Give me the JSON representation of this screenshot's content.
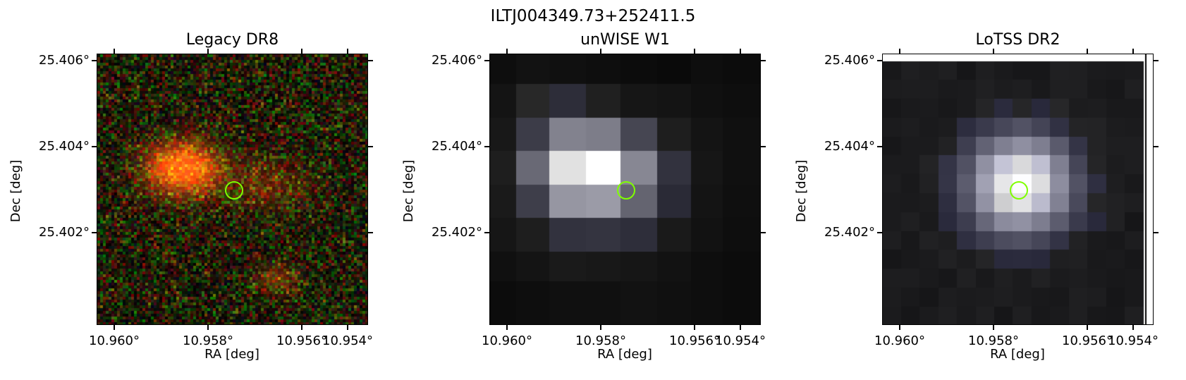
{
  "figure": {
    "title": "ILTJ004349.73+252411.5",
    "marker_color": "#7fff00"
  },
  "panels": [
    {
      "id": "legacy",
      "title": "Legacy DR8",
      "xlabel": "RA [deg]",
      "ylabel": "Dec [deg]",
      "yticks": [
        "25.406°",
        "25.404°",
        "25.402°"
      ],
      "xticks": [
        "10.960°",
        "10.958°",
        "10.956°",
        "10.954°"
      ],
      "image": "optical color composite, noisy red/green pixels with orange galaxy left of center",
      "marker": "green circle"
    },
    {
      "id": "unwise",
      "title": "unWISE W1",
      "xlabel": "RA [deg]",
      "ylabel": "Dec [deg]",
      "yticks": [
        "25.406°",
        "25.404°",
        "25.402°"
      ],
      "xticks": [
        "10.960°",
        "10.958°",
        "10.956°",
        "10.954°"
      ],
      "image": "coarse grayscale pixels, bright blob near center",
      "marker": "green circle"
    },
    {
      "id": "lotss",
      "title": "LoTSS DR2",
      "xlabel": "RA [deg]",
      "ylabel": "Dec [deg]",
      "yticks": [
        "25.406°",
        "25.404°",
        "25.402°"
      ],
      "xticks": [
        "10.960°",
        "10.958°",
        "10.956°",
        "10.954°"
      ],
      "image": "grayscale radio map, bright compact source at marker",
      "marker": "green circle"
    }
  ]
}
